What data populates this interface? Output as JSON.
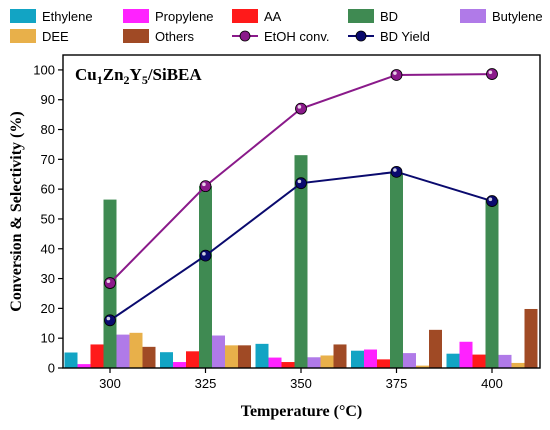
{
  "chart_data": {
    "type": "bar",
    "title": "Cu1Zn2Y5/SiBEA",
    "title_parts": [
      {
        "t": "Cu",
        "sub": false
      },
      {
        "t": "1",
        "sub": true
      },
      {
        "t": "Zn",
        "sub": false
      },
      {
        "t": "2",
        "sub": true
      },
      {
        "t": "Y",
        "sub": false
      },
      {
        "t": "5",
        "sub": true
      },
      {
        "t": "/SiBEA",
        "sub": false
      }
    ],
    "xlabel": "Temperature (°C)",
    "ylabel": "Conversion & Selectivity (%)",
    "categories": [
      "300",
      "325",
      "350",
      "375",
      "400"
    ],
    "ylim": [
      0,
      105
    ],
    "yticks": [
      "0",
      "10",
      "20",
      "30",
      "40",
      "50",
      "60",
      "70",
      "80",
      "90",
      "100"
    ],
    "legend_position": "top",
    "bar_series": [
      {
        "name": "Ethylene",
        "color": "#12a4c4",
        "values": [
          5.2,
          5.3,
          8.1,
          5.8,
          4.8
        ]
      },
      {
        "name": "Propylene",
        "color": "#ff22ff",
        "values": [
          1.3,
          2.0,
          3.5,
          6.2,
          8.8
        ]
      },
      {
        "name": "AA",
        "color": "#ff1a1a",
        "values": [
          7.9,
          5.6,
          2.0,
          2.9,
          4.5
        ]
      },
      {
        "name": "BD",
        "color": "#3f8a52",
        "values": [
          56.5,
          61.0,
          71.4,
          65.5,
          56.5
        ]
      },
      {
        "name": "Butylene",
        "color": "#b07ae8",
        "values": [
          11.2,
          10.9,
          3.6,
          5.0,
          4.4
        ]
      },
      {
        "name": "DEE",
        "color": "#e8b04a",
        "values": [
          11.8,
          7.6,
          4.2,
          0.8,
          1.7
        ]
      },
      {
        "name": "Others",
        "color": "#a04a25",
        "values": [
          7.1,
          7.6,
          7.9,
          12.8,
          19.8
        ]
      }
    ],
    "line_series": [
      {
        "name": "EtOH conv.",
        "color": "#8a1a8a",
        "values": [
          28.5,
          61.0,
          87.0,
          98.3,
          98.6
        ]
      },
      {
        "name": "BD Yield",
        "color": "#0a0a6e",
        "values": [
          16.0,
          37.7,
          62.0,
          65.8,
          56.0
        ]
      }
    ],
    "grid": false
  }
}
